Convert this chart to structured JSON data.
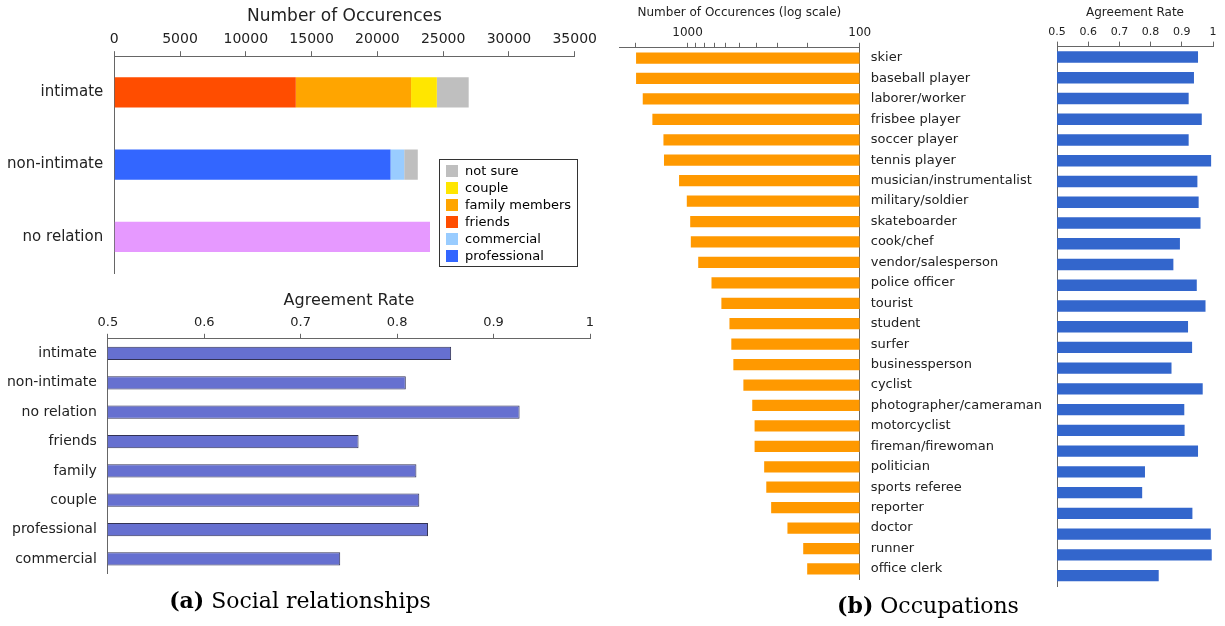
{
  "chart_data": [
    {
      "type": "bar",
      "orientation": "horizontal",
      "stacked": true,
      "xlabel": "Number of Occurences",
      "categories": [
        "intimate",
        "non-intimate",
        "no relation"
      ],
      "xlim": [
        0,
        35000
      ],
      "xticks": [
        0,
        5000,
        10000,
        15000,
        20000,
        25000,
        30000,
        35000
      ],
      "legend": "bottom right",
      "series": [
        {
          "color": "#e699ff",
          "values": [
            null,
            null,
            24000
          ]
        },
        {
          "name": "professional",
          "color": "#3366ff",
          "values": [
            null,
            21000,
            null
          ]
        },
        {
          "name": "commercial",
          "color": "#99ccff",
          "values": [
            null,
            1040,
            null
          ]
        },
        {
          "name": "friends",
          "color": "#ff4d00",
          "values": [
            13800,
            null,
            null
          ]
        },
        {
          "name": "family members",
          "color": "#ffa500",
          "values": [
            8760,
            null,
            null
          ]
        },
        {
          "name": "couple",
          "color": "#ffe600",
          "values": [
            1960,
            null,
            null
          ]
        },
        {
          "name": "not sure",
          "color": "#bfbfbf",
          "values": [
            2420,
            1030,
            null
          ]
        }
      ]
    },
    {
      "type": "bar",
      "orientation": "horizontal",
      "xlabel": "Agreement Rate",
      "categories": [
        "intimate",
        "non-intimate",
        "no relation",
        "friends",
        "family",
        "couple",
        "professional",
        "commercial"
      ],
      "values": [
        0.856,
        0.809,
        0.927,
        0.76,
        0.82,
        0.823,
        0.832,
        0.741
      ],
      "color": "#6670d0",
      "xlim": [
        0.5,
        1
      ],
      "xticks": [
        0.5,
        0.6,
        0.7,
        0.8,
        0.9,
        1
      ],
      "annotations": [
        "(a) Social relationships"
      ]
    },
    {
      "type": "bar",
      "orientation": "horizontal",
      "log": "x",
      "xlabel": "Number of Occurences (log scale)",
      "categories": [
        "skier",
        "baseball player",
        "laborer/worker",
        "frisbee player",
        "soccer player",
        "tennis player",
        "musician/instrumentalist",
        "military/soldier",
        "skateboarder",
        "cook/chef",
        "vendor/salesperson",
        "police officer",
        "tourist",
        "student",
        "surfer",
        "businessperson",
        "cyclist",
        "photographer/cameraman",
        "motorcyclist",
        "fireman/firewoman",
        "politician",
        "sports referee",
        "reporter",
        "doctor",
        "runner",
        "office clerk"
      ],
      "values": [
        1990,
        1990,
        1820,
        1600,
        1380,
        1370,
        1120,
        1010,
        965,
        957,
        867,
        726,
        636,
        571,
        557,
        542,
        474,
        421,
        408,
        408,
        359,
        349,
        327,
        263,
        213,
        202
      ],
      "color": "#ff9900",
      "xlim": [
        2500,
        100
      ],
      "xticks": [
        {
          "value": 2000,
          "label": null
        },
        1000,
        {
          "value": 900,
          "label": null
        },
        {
          "value": 800,
          "label": null
        },
        {
          "value": 700,
          "label": null
        },
        {
          "value": 600,
          "label": null
        },
        {
          "value": 500,
          "label": null
        },
        {
          "value": 400,
          "label": null
        },
        {
          "value": 300,
          "label": null
        },
        {
          "value": 200,
          "label": null
        },
        100
      ],
      "annotations": [
        "(b) Occupations"
      ]
    },
    {
      "type": "bar",
      "orientation": "horizontal",
      "xlabel": "Agreement Rate",
      "tick_labels": "x",
      "categories": [
        null,
        null,
        null,
        null,
        null,
        null,
        null,
        null,
        null,
        null,
        null,
        null,
        null,
        null,
        null,
        null,
        null,
        null,
        null,
        null,
        null,
        null,
        null,
        null,
        null,
        null
      ],
      "values": [
        0.952,
        0.939,
        0.922,
        0.964,
        0.922,
        0.994,
        0.95,
        0.954,
        0.96,
        0.894,
        0.873,
        0.948,
        0.976,
        0.92,
        0.933,
        0.867,
        0.967,
        0.908,
        0.909,
        0.952,
        0.782,
        0.773,
        0.934,
        0.993,
        0.996,
        0.826
      ],
      "color": "#3366cc",
      "xlim": [
        0.5,
        1
      ],
      "xticks": [
        0.5,
        0.6,
        0.7,
        0.8,
        0.9,
        1
      ]
    }
  ]
}
